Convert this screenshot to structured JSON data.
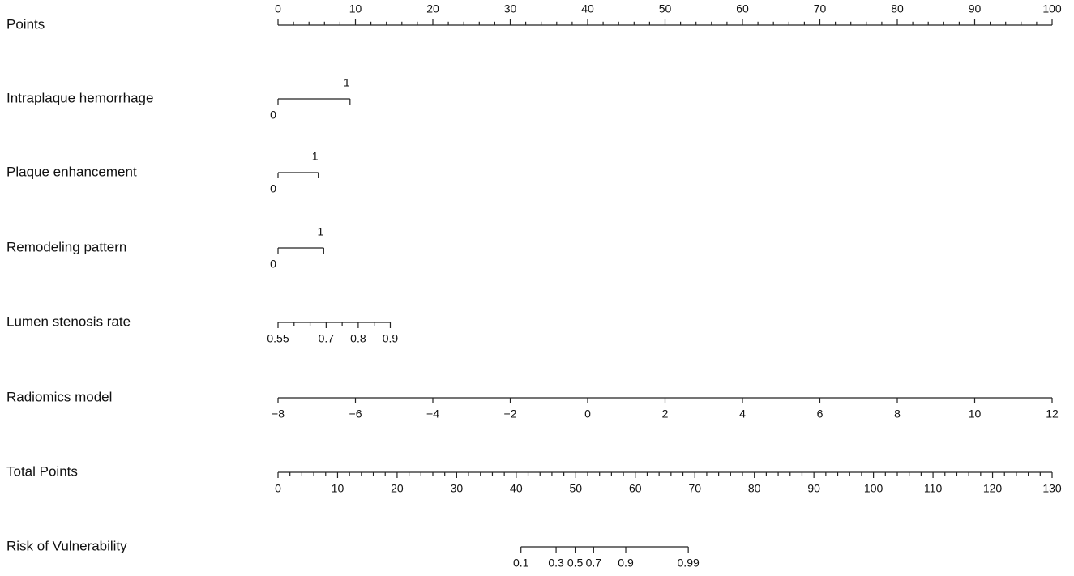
{
  "chart_data": {
    "type": "nomogram",
    "rows": [
      {
        "name": "Points",
        "lim": [
          0,
          100
        ],
        "span": [
          0,
          100
        ],
        "label_side": "above",
        "ticks": [
          0,
          10,
          20,
          30,
          40,
          50,
          60,
          70,
          80,
          90,
          100
        ],
        "minor_ticks": [
          2,
          4,
          6,
          8,
          12,
          14,
          16,
          18,
          22,
          24,
          26,
          28,
          32,
          34,
          36,
          38,
          42,
          44,
          46,
          48,
          52,
          54,
          56,
          58,
          62,
          64,
          66,
          68,
          72,
          74,
          76,
          78,
          82,
          84,
          86,
          88,
          92,
          94,
          96,
          98
        ]
      },
      {
        "name": "Intraplaque hemorrhage",
        "lim": [
          0,
          1
        ],
        "span": [
          0,
          9.3
        ],
        "label_side": "alternate",
        "ticks": [
          0,
          1
        ]
      },
      {
        "name": "Plaque enhancement",
        "lim": [
          0,
          1
        ],
        "span": [
          0,
          5.2
        ],
        "label_side": "alternate",
        "ticks": [
          0,
          1
        ]
      },
      {
        "name": "Remodeling pattern",
        "lim": [
          0,
          1
        ],
        "span": [
          0,
          5.9
        ],
        "label_side": "alternate",
        "ticks": [
          0,
          1
        ]
      },
      {
        "name": "Lumen stenosis rate",
        "lim": [
          0.55,
          0.9
        ],
        "span": [
          0,
          14.5
        ],
        "label_side": "below",
        "ticks": [
          0.55,
          0.7,
          0.8,
          0.9
        ],
        "minor_ticks": [
          0.6,
          0.65,
          0.75,
          0.85
        ]
      },
      {
        "name": "Radiomics model",
        "lim": [
          -8,
          12
        ],
        "span": [
          0,
          100
        ],
        "label_side": "below",
        "ticks": [
          {
            "value": -8,
            "label": "−8"
          },
          {
            "value": -6,
            "label": "−6"
          },
          {
            "value": -4,
            "label": "−4"
          },
          {
            "value": -2,
            "label": "−2"
          },
          0,
          2,
          4,
          6,
          8,
          10,
          12
        ]
      },
      {
        "name": "Total Points",
        "lim": [
          0,
          130
        ],
        "span": [
          0,
          100
        ],
        "label_side": "below",
        "ticks": [
          0,
          10,
          20,
          30,
          40,
          50,
          60,
          70,
          80,
          90,
          100,
          110,
          120,
          130
        ],
        "minor_ticks": [
          2,
          4,
          6,
          8,
          12,
          14,
          16,
          18,
          22,
          24,
          26,
          28,
          32,
          34,
          36,
          38,
          42,
          44,
          46,
          48,
          52,
          54,
          56,
          58,
          62,
          64,
          66,
          68,
          72,
          74,
          76,
          78,
          82,
          84,
          86,
          88,
          92,
          94,
          96,
          98,
          102,
          104,
          106,
          108,
          112,
          114,
          116,
          118,
          122,
          124,
          126,
          128
        ]
      },
      {
        "name": "Risk of Vulnerability",
        "label_side": "below",
        "ticks": [
          0.1,
          0.3,
          0.5,
          0.7,
          0.9,
          0.99
        ],
        "tick_points": [
          40.8,
          46.7,
          49.9,
          53.0,
          58.4,
          68.9
        ]
      }
    ]
  }
}
